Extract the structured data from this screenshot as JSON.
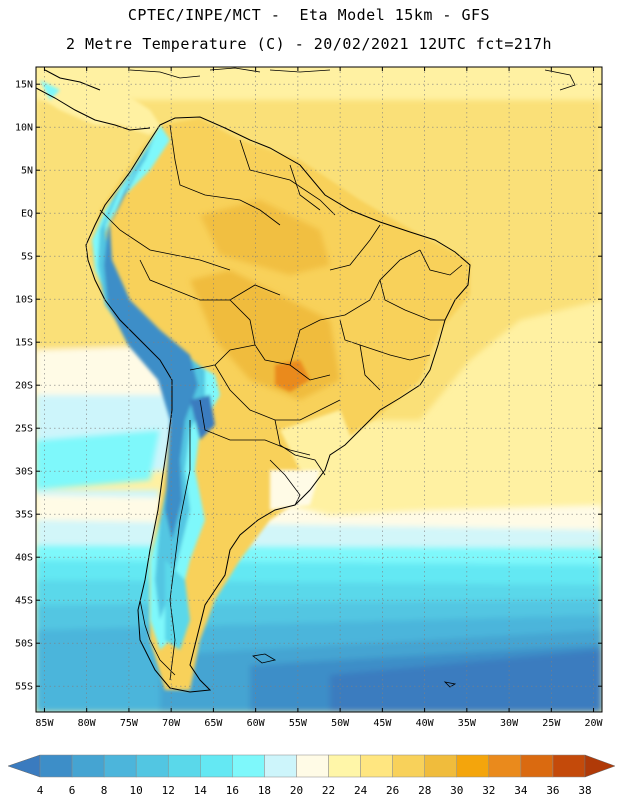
{
  "header": {
    "line1": "CPTEC/INPE/MCT -  Eta Model 15km - GFS",
    "line2": "2 Metre Temperature (C) - 20/02/2021 12UTC fct=217h"
  },
  "map": {
    "lon_range": [
      -86,
      -19
    ],
    "lat_range": [
      -58,
      17
    ],
    "lat_ticks": [
      {
        "value": 15,
        "label": "15N"
      },
      {
        "value": 10,
        "label": "10N"
      },
      {
        "value": 5,
        "label": "5N"
      },
      {
        "value": 0,
        "label": "EQ"
      },
      {
        "value": -5,
        "label": "5S"
      },
      {
        "value": -10,
        "label": "10S"
      },
      {
        "value": -15,
        "label": "15S"
      },
      {
        "value": -20,
        "label": "20S"
      },
      {
        "value": -25,
        "label": "25S"
      },
      {
        "value": -30,
        "label": "30S"
      },
      {
        "value": -35,
        "label": "35S"
      },
      {
        "value": -40,
        "label": "40S"
      },
      {
        "value": -45,
        "label": "45S"
      },
      {
        "value": -50,
        "label": "50S"
      },
      {
        "value": -55,
        "label": "55S"
      }
    ],
    "lon_ticks": [
      {
        "value": -85,
        "label": "85W"
      },
      {
        "value": -80,
        "label": "80W"
      },
      {
        "value": -75,
        "label": "75W"
      },
      {
        "value": -70,
        "label": "70W"
      },
      {
        "value": -65,
        "label": "65W"
      },
      {
        "value": -60,
        "label": "60W"
      },
      {
        "value": -55,
        "label": "55W"
      },
      {
        "value": -50,
        "label": "50W"
      },
      {
        "value": -45,
        "label": "45W"
      },
      {
        "value": -40,
        "label": "40W"
      },
      {
        "value": -35,
        "label": "35W"
      },
      {
        "value": -30,
        "label": "30W"
      },
      {
        "value": -25,
        "label": "25W"
      },
      {
        "value": -20,
        "label": "20W"
      }
    ]
  },
  "colorbar": {
    "labels": [
      "4",
      "6",
      "8",
      "10",
      "12",
      "14",
      "16",
      "18",
      "20",
      "22",
      "24",
      "26",
      "28",
      "30",
      "32",
      "34",
      "36",
      "38"
    ],
    "colors": [
      "#3a7bbf",
      "#3d8ec8",
      "#45a4d2",
      "#4cb5db",
      "#52c6e2",
      "#5ad8ea",
      "#64e8f3",
      "#7ef8fb",
      "#cdf5fb",
      "#fffbe6",
      "#fff6a8",
      "#ffe680",
      "#f8d15a",
      "#f0bc3c",
      "#f4a50c",
      "#ea8a1c",
      "#da6a10",
      "#c44a0a",
      "#b03a08"
    ]
  }
}
